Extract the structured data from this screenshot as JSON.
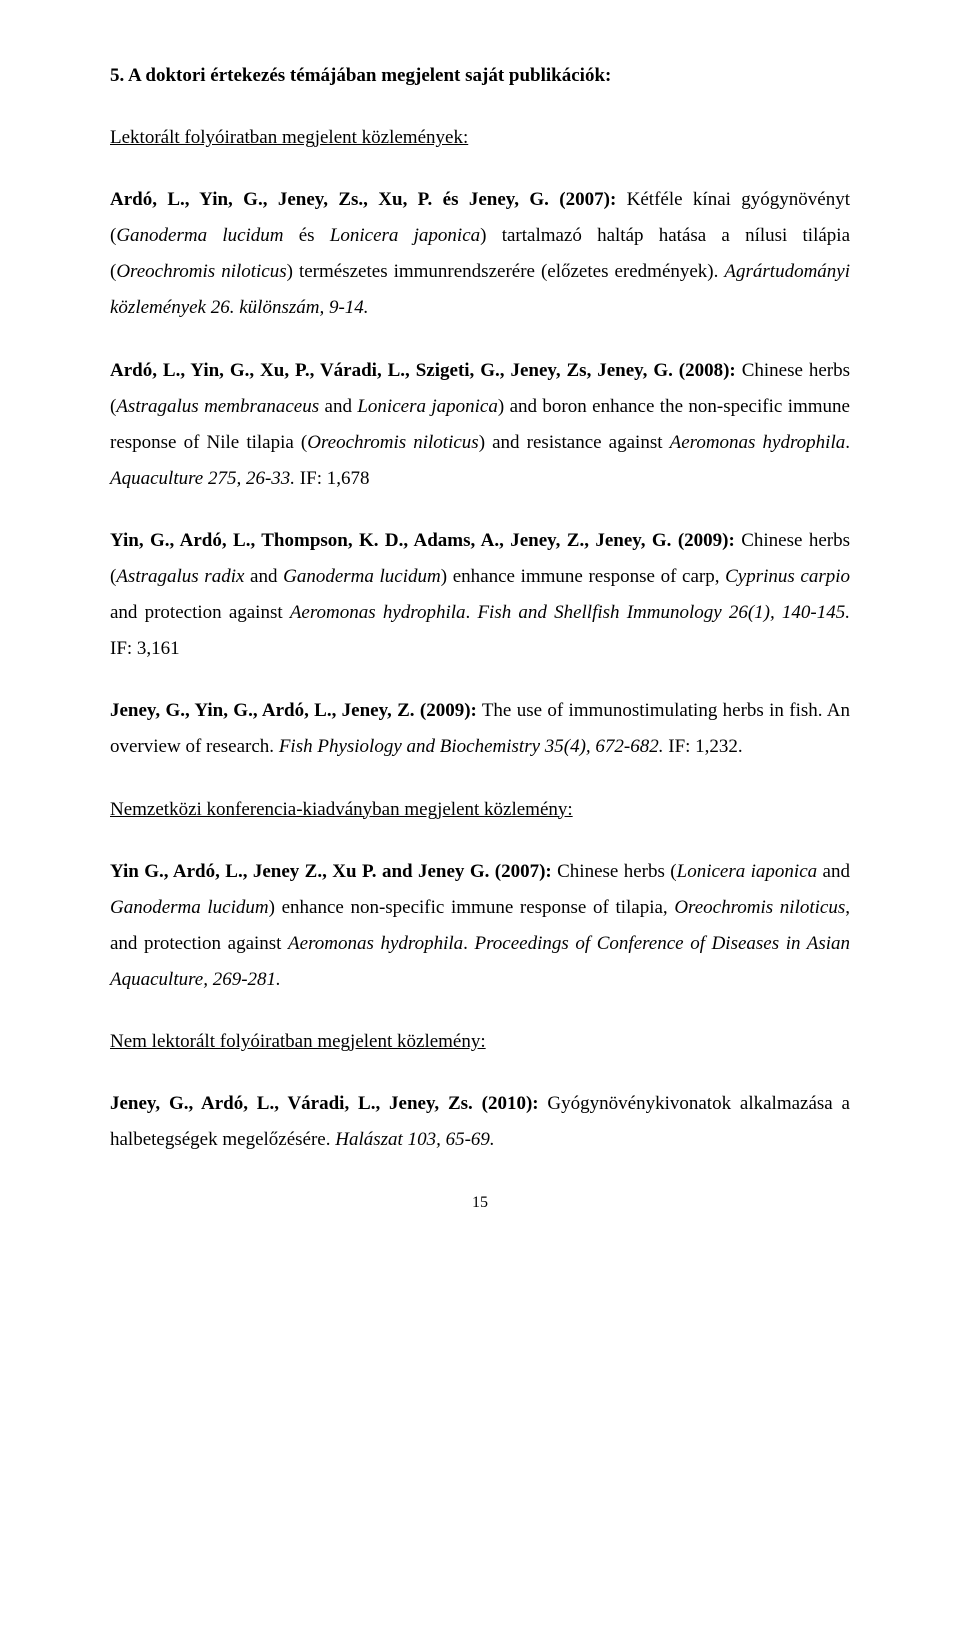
{
  "colors": {
    "text": "#000000",
    "background": "#ffffff"
  },
  "typography": {
    "font_family": "Times New Roman",
    "body_size_pt": 14,
    "line_height": 1.9
  },
  "section_title": "5. A doktori értekezés témájában megjelent saját publikációk:",
  "sub1": "Lektorált folyóiratban megjelent közlemények:",
  "e1": {
    "authors": "Ardó, L., Yin, G., Jeney, Zs., Xu, P. és Jeney, G. (2007):",
    "rest1": " Kétféle kínai gyógynövényt (",
    "i1": "Ganoderma lucidum",
    "rest2": " és ",
    "i2": "Lonicera japonica",
    "rest3": ") tartalmazó haltáp hatása a nílusi tilápia (",
    "i3": "Oreochromis niloticus",
    "rest4": ") természetes immunrendszerére (előzetes eredmények). ",
    "i4": "Agrártudományi közlemények 26. különszám, 9-14."
  },
  "e2": {
    "authors": "Ardó, L., Yin, G., Xu, P., Váradi, L., Szigeti, G., Jeney, Zs, Jeney, G. (2008):",
    "rest1": " Chinese herbs (",
    "i1": "Astragalus membranaceus",
    "rest2": " and ",
    "i2": "Lonicera japonica",
    "rest3": ") and boron enhance the non-specific immune response of Nile tilapia (",
    "i3": "Oreochromis niloticus",
    "rest4": ") and resistance against ",
    "i4": "Aeromonas hydrophila",
    "rest5": ". ",
    "i5": "Aquaculture 275, 26-33.",
    "rest6": " IF: 1,678"
  },
  "e3": {
    "authors": "Yin, G., Ardó, L., Thompson, K. D., Adams, A., Jeney, Z., Jeney, G. (2009):",
    "rest1": " Chinese herbs (",
    "i1": "Astragalus radix",
    "rest2": " and ",
    "i2": "Ganoderma lucidum",
    "rest3": ") enhance immune response of carp, ",
    "i3": "Cyprinus carpio",
    "rest4": " and protection against ",
    "i4": "Aeromonas hydrophila",
    "rest5": ". ",
    "i5": "Fish and Shellfish Immunology 26(1), 140-145.",
    "rest6": " IF: 3,161"
  },
  "e4": {
    "authors": "Jeney, G., Yin, G., Ardó, L., Jeney, Z. (2009):",
    "rest1": " The use of immunostimulating herbs in fish. An overview of research. ",
    "i1": "Fish Physiology and Biochemistry 35(4), 672-682.",
    "rest2": " IF: 1,232."
  },
  "sub2": "Nemzetközi konferencia-kiadványban megjelent közlemény:",
  "e5": {
    "authors": "Yin G., Ardó, L., Jeney Z., Xu P. and Jeney G. (2007):",
    "rest1": " Chinese herbs (",
    "i1": "Lonicera iaponica",
    "rest2": " and ",
    "i2": "Ganoderma lucidum",
    "rest3": ") enhance non-specific immune response of tilapia, ",
    "i3": "Oreochromis niloticus",
    "rest4": ", and protection against ",
    "i4": "Aeromonas hydrophila",
    "rest5": ". ",
    "i5": "Proceedings of Conference of Diseases in Asian Aquaculture, 269-281."
  },
  "sub3": "Nem lektorált folyóiratban megjelent közlemény:",
  "e6": {
    "authors": "Jeney, G., Ardó, L., Váradi, L., Jeney, Zs. (2010):",
    "rest1": " Gyógynövénykivonatok alkalmazása a halbetegségek megelőzésére. ",
    "i1": "Halászat 103, 65-69."
  },
  "page_number": "15"
}
